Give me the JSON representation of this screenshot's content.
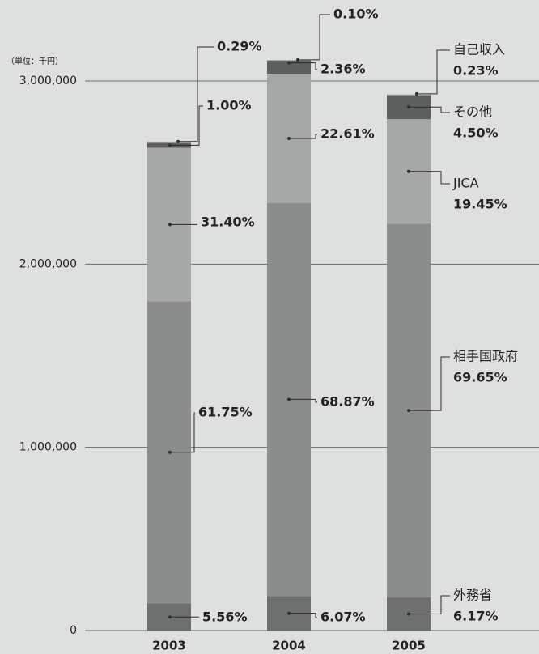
{
  "chart_data": {
    "type": "stacked_bar",
    "unit_label": "（単位：千円）",
    "categories": [
      "2003",
      "2004",
      "2005"
    ],
    "series": [
      {
        "name": "外務省",
        "color": "#6e6f6f",
        "values": [
          148500,
          189100,
          180800
        ],
        "labels": [
          "5.56%",
          "6.07%",
          "6.17%"
        ]
      },
      {
        "name": "相手国政府",
        "color": "#8b8c8c",
        "values": [
          1648700,
          2145300,
          2040700
        ],
        "labels": [
          "61.75%",
          "68.87%",
          "69.65%"
        ]
      },
      {
        "name": "JICA",
        "color": "#a6a7a7",
        "values": [
          838400,
          704300,
          569900
        ],
        "labels": [
          "31.40%",
          "22.61%",
          "19.45%"
        ]
      },
      {
        "name": "その他",
        "color": "#5d5e5e",
        "values": [
          26700,
          73500,
          131900
        ],
        "labels": [
          "1.00%",
          "2.36%",
          "4.50%"
        ]
      },
      {
        "name": "自己収入",
        "color": "#c9caca",
        "values": [
          7700,
          3100,
          6700
        ],
        "labels": [
          "0.29%",
          "0.10%",
          "0.23%"
        ]
      }
    ],
    "ylim": [
      0,
      3000000
    ],
    "yticks": [
      0,
      {
        "value": 1000000,
        "label": "1,000,000"
      },
      {
        "value": 2000000,
        "label": "2,000,000"
      },
      {
        "value": 3000000,
        "label": "3,000,000"
      }
    ],
    "grid": true
  }
}
